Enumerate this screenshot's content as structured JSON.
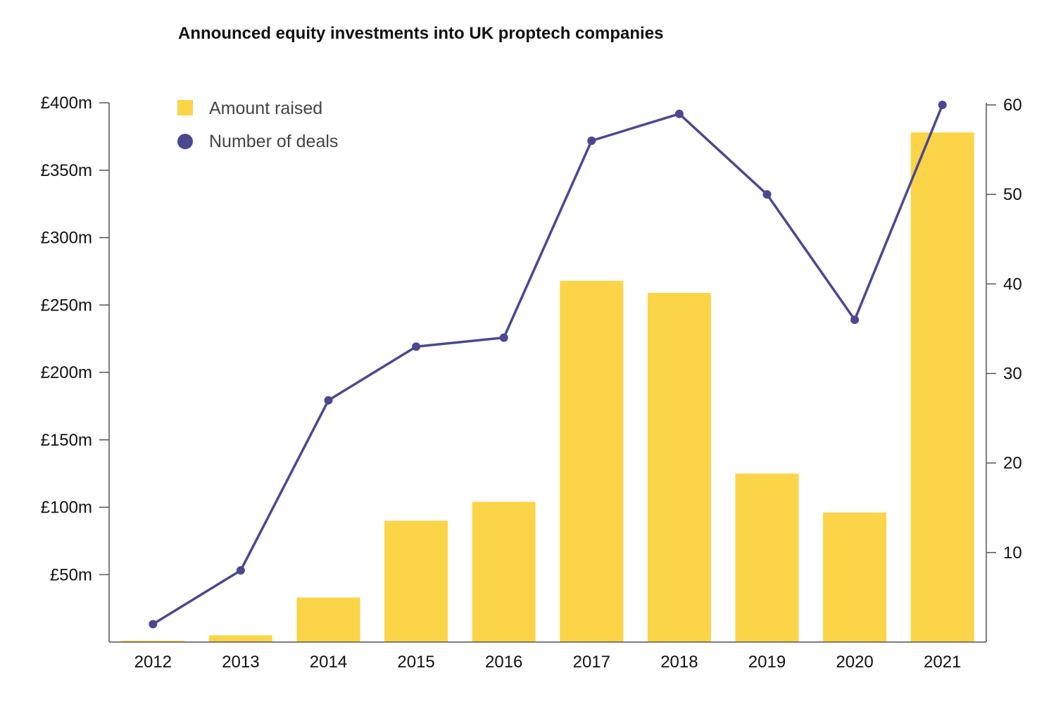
{
  "chart_data": {
    "type": "bar",
    "title": "Announced equity investments into UK proptech companies",
    "categories": [
      "2012",
      "2013",
      "2014",
      "2015",
      "2016",
      "2017",
      "2018",
      "2019",
      "2020",
      "2021"
    ],
    "series": [
      {
        "name": "Amount raised",
        "type": "bar",
        "axis": "left",
        "color": "#fcd447",
        "values": [
          1,
          5,
          33,
          90,
          104,
          268,
          259,
          125,
          96,
          378
        ]
      },
      {
        "name": "Number of deals",
        "type": "line",
        "axis": "right",
        "color": "#4b4891",
        "values": [
          2,
          8,
          27,
          33,
          34,
          56,
          59,
          50,
          36,
          60
        ]
      }
    ],
    "y_left": {
      "ylim": [
        0,
        400
      ],
      "ticks": [
        50,
        100,
        150,
        200,
        250,
        300,
        350,
        400
      ],
      "tick_labels": [
        "£50m",
        "£100m",
        "£150m",
        "£200m",
        "£250m",
        "£300m",
        "£350m",
        "£400m"
      ]
    },
    "y_right": {
      "ylim": [
        0,
        60
      ],
      "ticks": [
        10,
        20,
        30,
        40,
        50,
        60
      ],
      "tick_labels": [
        "10",
        "20",
        "30",
        "40",
        "50",
        "60"
      ]
    },
    "legend": {
      "position": "top-left"
    },
    "grid": false
  }
}
